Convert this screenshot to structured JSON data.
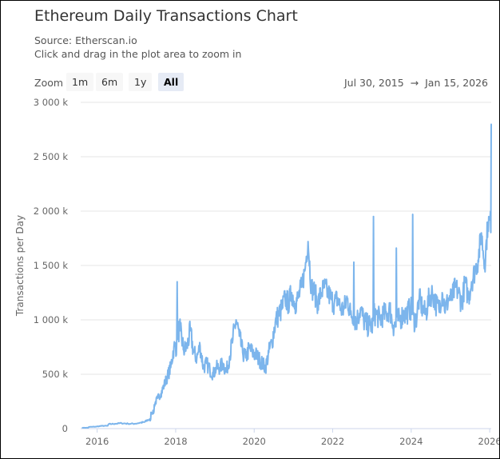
{
  "title": "Ethereum Daily Transactions Chart",
  "subtitle_source": "Source: Etherscan.io",
  "subtitle_hint": "Click and drag in the plot area to zoom in",
  "range_selector": {
    "label": "Zoom",
    "buttons": [
      {
        "label": "1m"
      },
      {
        "label": "6m"
      },
      {
        "label": "1y"
      },
      {
        "label": "All",
        "selected": true
      }
    ]
  },
  "date_range": {
    "from": "Jul 30, 2015",
    "arrow": "→",
    "to": "Jan 15, 2026"
  },
  "chart_data": {
    "type": "line",
    "title": "Ethereum Daily Transactions Chart",
    "ylabel": "Transactions per Day",
    "ylim": [
      0,
      3000000
    ],
    "y_ticks": [
      {
        "v": 0,
        "label": "0"
      },
      {
        "v": 500000,
        "label": "500 k"
      },
      {
        "v": 1000000,
        "label": "1 000 k"
      },
      {
        "v": 1500000,
        "label": "1 500 k"
      },
      {
        "v": 2000000,
        "label": "2 000 k"
      },
      {
        "v": 2500000,
        "label": "2 500 k"
      },
      {
        "v": 3000000,
        "label": "3 000 k"
      }
    ],
    "x_ticks": [
      "2016",
      "2018",
      "2020",
      "2022",
      "2024",
      "2026"
    ],
    "xlim": [
      "2015-07-30",
      "2026-01-15"
    ],
    "grid": true,
    "color": "#7cb5ec",
    "series": {
      "x": [
        "2015-08",
        "2015-10",
        "2015-12",
        "2016-02",
        "2016-04",
        "2016-06",
        "2016-08",
        "2016-10",
        "2016-12",
        "2017-02",
        "2017-03",
        "2017-04",
        "2017-05",
        "2017-06",
        "2017-07",
        "2017-08",
        "2017-09",
        "2017-10",
        "2017-11",
        "2017-12",
        "2018-01",
        "2018-02",
        "2018-03",
        "2018-04",
        "2018-05",
        "2018-06",
        "2018-07",
        "2018-08",
        "2018-09",
        "2018-10",
        "2018-11",
        "2018-12",
        "2019-01",
        "2019-02",
        "2019-03",
        "2019-04",
        "2019-05",
        "2019-06",
        "2019-07",
        "2019-08",
        "2019-09",
        "2019-10",
        "2019-11",
        "2019-12",
        "2020-01",
        "2020-02",
        "2020-03",
        "2020-04",
        "2020-05",
        "2020-06",
        "2020-07",
        "2020-08",
        "2020-09",
        "2020-10",
        "2020-11",
        "2020-12",
        "2021-01",
        "2021-02",
        "2021-03",
        "2021-04",
        "2021-05",
        "2021-06",
        "2021-07",
        "2021-08",
        "2021-09",
        "2021-10",
        "2021-11",
        "2021-12",
        "2022-01",
        "2022-02",
        "2022-03",
        "2022-04",
        "2022-05",
        "2022-06",
        "2022-07",
        "2022-08",
        "2022-09",
        "2022-10",
        "2022-11",
        "2022-12",
        "2023-01",
        "2023-02",
        "2023-03",
        "2023-04",
        "2023-05",
        "2023-06",
        "2023-07",
        "2023-08",
        "2023-09",
        "2023-10",
        "2023-11",
        "2023-12",
        "2024-01",
        "2024-02",
        "2024-03",
        "2024-04",
        "2024-05",
        "2024-06",
        "2024-07",
        "2024-08",
        "2024-09",
        "2024-10",
        "2024-11",
        "2024-12",
        "2025-01",
        "2025-02",
        "2025-03",
        "2025-04",
        "2025-05",
        "2025-06",
        "2025-07",
        "2025-08",
        "2025-09",
        "2025-10",
        "2025-11",
        "2025-12",
        "2026-01"
      ],
      "y": [
        8000,
        15000,
        18000,
        25000,
        40000,
        45000,
        50000,
        45000,
        45000,
        55000,
        60000,
        80000,
        150000,
        220000,
        280000,
        320000,
        400000,
        480000,
        560000,
        750000,
        1350000,
        900000,
        720000,
        750000,
        900000,
        700000,
        650000,
        760000,
        560000,
        600000,
        540000,
        500000,
        560000,
        560000,
        600000,
        520000,
        660000,
        820000,
        1000000,
        850000,
        700000,
        650000,
        740000,
        700000,
        680000,
        640000,
        600000,
        560000,
        700000,
        800000,
        980000,
        1050000,
        1100000,
        1200000,
        1150000,
        1250000,
        1150000,
        1200000,
        1300000,
        1450000,
        1720000,
        1300000,
        1250000,
        1150000,
        1250000,
        1300000,
        1250000,
        1200000,
        1150000,
        1200000,
        1100000,
        1100000,
        1200000,
        1050000,
        1530000,
        1000000,
        1100000,
        1000000,
        950000,
        950000,
        1950000,
        1050000,
        1000000,
        1050000,
        1050000,
        1100000,
        950000,
        1660000,
        1000000,
        1050000,
        1050000,
        1100000,
        1970000,
        1000000,
        1200000,
        1100000,
        1050000,
        1200000,
        1250000,
        1150000,
        1100000,
        1250000,
        1100000,
        1200000,
        1200000,
        1300000,
        1250000,
        1150000,
        1350000,
        1200000,
        1350000,
        1450000,
        1550000,
        1800000,
        1500000,
        1900000,
        2800000
      ]
    }
  }
}
